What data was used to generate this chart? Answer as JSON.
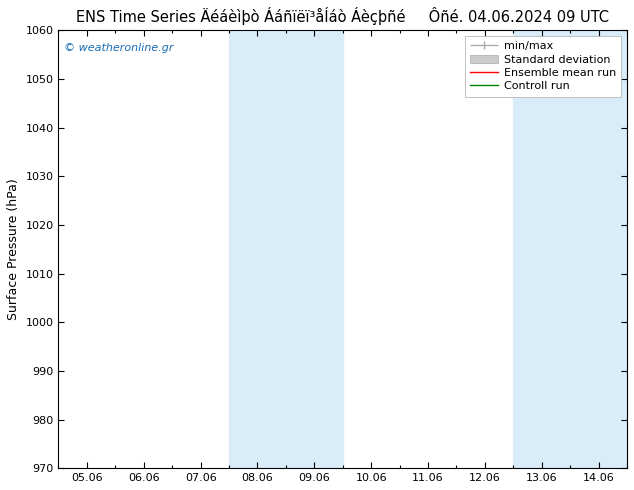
{
  "title_left": "ENS Time Series Äéáèìþò Ááñïëï³åÍáò Áèçþñé",
  "title_right": "Ôñé. 04.06.2024 09 UTC",
  "ylabel": "Surface Pressure (hPa)",
  "ylim": [
    970,
    1060
  ],
  "yticks": [
    970,
    980,
    990,
    1000,
    1010,
    1020,
    1030,
    1040,
    1050,
    1060
  ],
  "xtick_labels": [
    "05.06",
    "06.06",
    "07.06",
    "08.06",
    "09.06",
    "10.06",
    "11.06",
    "12.06",
    "13.06",
    "14.06"
  ],
  "xtick_positions": [
    0,
    1,
    2,
    3,
    4,
    5,
    6,
    7,
    8,
    9
  ],
  "xmin": -0.5,
  "xmax": 9.5,
  "shade_bands": [
    {
      "xstart": 2.5,
      "xend": 4.5,
      "color": "#d9ecf9"
    },
    {
      "xstart": 7.5,
      "xend": 9.5,
      "color": "#d9ecf9"
    }
  ],
  "legend_entries": [
    {
      "label": "min/max",
      "color": "#aaaaaa",
      "lw": 1.0
    },
    {
      "label": "Standard deviation",
      "color": "#cccccc",
      "lw": 1.0
    },
    {
      "label": "Ensemble mean run",
      "color": "red",
      "lw": 1.0
    },
    {
      "label": "Controll run",
      "color": "green",
      "lw": 1.0
    }
  ],
  "watermark": "© weatheronline.gr",
  "watermark_color": "#1a6bb5",
  "bg_color": "#ffffff",
  "plot_bg_color": "#ffffff",
  "border_color": "#000000",
  "tick_color": "#000000",
  "title_color": "#000000",
  "title_fontsize": 10.5,
  "axis_label_fontsize": 9,
  "tick_fontsize": 8,
  "legend_fontsize": 8,
  "watermark_fontsize": 8
}
